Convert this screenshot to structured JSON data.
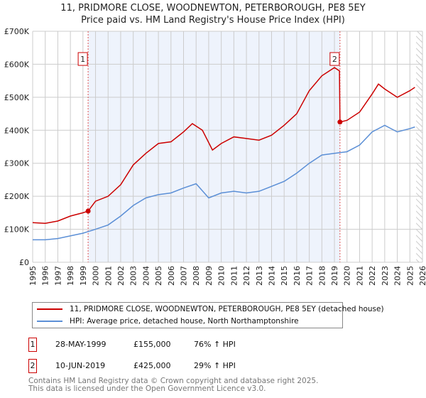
{
  "title": "11, PRIDMORE CLOSE, WOODNEWTON, PETERBOROUGH, PE8 5EY",
  "subtitle": "Price paid vs. HM Land Registry's House Price Index (HPI)",
  "chart_data": {
    "type": "line",
    "ylim": [
      0,
      700000
    ],
    "xlim": [
      1995,
      2026
    ],
    "yticks": [
      0,
      100000,
      200000,
      300000,
      400000,
      500000,
      600000,
      700000
    ],
    "ytick_labels": [
      "£0",
      "£100K",
      "£200K",
      "£300K",
      "£400K",
      "£500K",
      "£600K",
      "£700K"
    ],
    "xticks": [
      1995,
      1996,
      1997,
      1998,
      1999,
      2000,
      2001,
      2002,
      2003,
      2004,
      2005,
      2006,
      2007,
      2008,
      2009,
      2010,
      2011,
      2012,
      2013,
      2014,
      2015,
      2016,
      2017,
      2018,
      2019,
      2020,
      2021,
      2022,
      2023,
      2024,
      2025,
      2026
    ],
    "grid": true,
    "shaded_range": [
      1999.41,
      2019.44
    ],
    "projection_from": 2025.5,
    "series": [
      {
        "name": "11, PRIDMORE CLOSE, WOODNEWTON, PETERBOROUGH, PE8 5EY (detached house)",
        "color": "#cc0000",
        "x": [
          1995,
          1996,
          1997,
          1998,
          1999,
          1999.41,
          2000,
          2001,
          2002,
          2003,
          2004,
          2005,
          2006,
          2007,
          2007.7,
          2008.5,
          2009.3,
          2010,
          2011,
          2012,
          2013,
          2014,
          2015,
          2016,
          2017,
          2018,
          2019,
          2019.4,
          2019.44,
          2020,
          2021,
          2022,
          2022.5,
          2023,
          2024,
          2025,
          2025.4
        ],
        "y": [
          120000,
          118000,
          125000,
          140000,
          150000,
          155000,
          185000,
          200000,
          235000,
          295000,
          330000,
          360000,
          365000,
          395000,
          420000,
          400000,
          340000,
          360000,
          380000,
          375000,
          370000,
          385000,
          415000,
          450000,
          520000,
          565000,
          590000,
          580000,
          425000,
          430000,
          455000,
          510000,
          540000,
          525000,
          500000,
          520000,
          530000
        ]
      },
      {
        "name": "HPI: Average price, detached house, North Northamptonshire",
        "color": "#5b8fd6",
        "x": [
          1995,
          1996,
          1997,
          1998,
          1999,
          2000,
          2001,
          2002,
          2003,
          2004,
          2005,
          2006,
          2007,
          2008,
          2009,
          2010,
          2011,
          2012,
          2013,
          2014,
          2015,
          2016,
          2017,
          2018,
          2019,
          2020,
          2021,
          2022,
          2023,
          2024,
          2025,
          2025.4
        ],
        "y": [
          68000,
          68000,
          72000,
          80000,
          88000,
          100000,
          113000,
          140000,
          172000,
          195000,
          205000,
          210000,
          225000,
          238000,
          195000,
          210000,
          215000,
          210000,
          215000,
          230000,
          245000,
          270000,
          300000,
          325000,
          330000,
          335000,
          355000,
          395000,
          415000,
          395000,
          405000,
          410000
        ]
      }
    ],
    "markers": [
      {
        "label": "1",
        "x": 1999.41,
        "y": 155000
      },
      {
        "label": "2",
        "x": 2019.44,
        "y": 425000
      }
    ]
  },
  "legend": [
    "11, PRIDMORE CLOSE, WOODNEWTON, PETERBOROUGH, PE8 5EY (detached house)",
    "HPI: Average price, detached house, North Northamptonshire"
  ],
  "transactions": [
    {
      "num": "1",
      "date": "28-MAY-1999",
      "price": "£155,000",
      "hpi": "76% ↑ HPI"
    },
    {
      "num": "2",
      "date": "10-JUN-2019",
      "price": "£425,000",
      "hpi": "29% ↑ HPI"
    }
  ],
  "footer": [
    "Contains HM Land Registry data © Crown copyright and database right 2025.",
    "This data is licensed under the Open Government Licence v3.0."
  ]
}
